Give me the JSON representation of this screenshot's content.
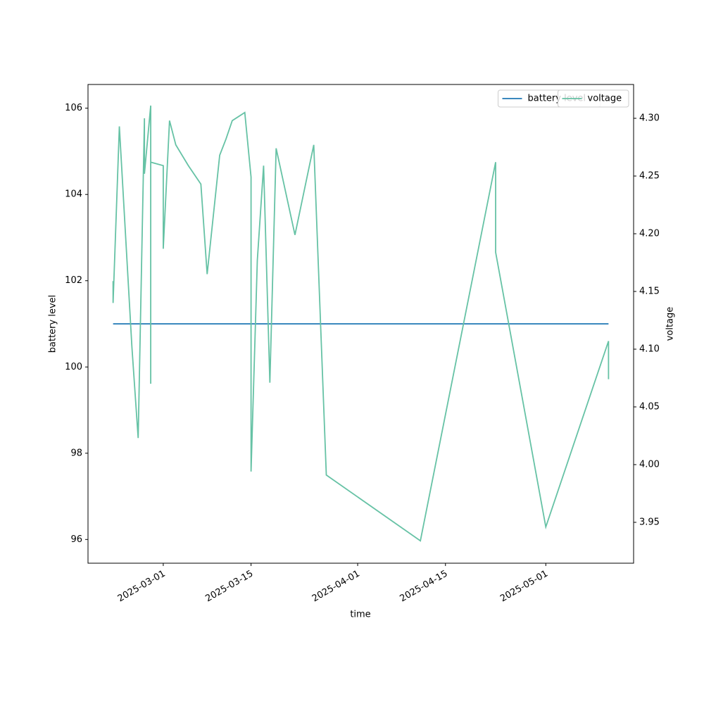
{
  "chart_data": {
    "type": "line",
    "x_label": "time",
    "y_label": "battery level",
    "y2_label": "voltage",
    "xlim": [
      "2025-02-17",
      "2025-05-15"
    ],
    "xticks": [
      "2025-03-01",
      "2025-03-15",
      "2025-04-01",
      "2025-04-15",
      "2025-05-01"
    ],
    "ylim": [
      95.45,
      106.55
    ],
    "yticks": [
      96,
      98,
      100,
      102,
      104,
      106
    ],
    "y2lim": [
      3.9146,
      4.3293
    ],
    "y2ticks": [
      3.95,
      {
        "value": 4.0,
        "label": "4.00"
      },
      4.05,
      {
        "value": 4.1,
        "label": "4.10"
      },
      4.15,
      {
        "value": 4.2,
        "label": "4.20"
      },
      4.25,
      {
        "value": 4.3,
        "label": "4.30"
      }
    ],
    "grid": false,
    "series": [
      {
        "name": "battery level",
        "color": "#1f77b4",
        "legend": "upper right",
        "x": [
          "2025-02-21",
          "2025-05-11"
        ],
        "values": [
          101,
          101
        ]
      },
      {
        "name": "voltage",
        "color": "#66c2a5",
        "axis": "y2",
        "legend": "upper right",
        "x": [
          "2025-02-21",
          "2025-02-21",
          "2025-02-22",
          "2025-02-24",
          "2025-02-25",
          "2025-02-26",
          "2025-02-26",
          "2025-02-27",
          "2025-02-27",
          "2025-02-27",
          "2025-03-01",
          "2025-03-01",
          "2025-03-02",
          "2025-03-03",
          "2025-03-05",
          "2025-03-07",
          "2025-03-08",
          "2025-03-10",
          "2025-03-11",
          "2025-03-12",
          "2025-03-14",
          "2025-03-15",
          "2025-03-15",
          "2025-03-15",
          "2025-03-16",
          "2025-03-17",
          "2025-03-18",
          "2025-03-19",
          "2025-03-22",
          "2025-03-25",
          "2025-03-27",
          "2025-04-11",
          "2025-04-23",
          "2025-04-23",
          "2025-05-01",
          "2025-05-11",
          "2025-05-11"
        ],
        "values": [
          4.159,
          4.14,
          4.293,
          4.102,
          4.023,
          4.3,
          4.252,
          4.311,
          4.07,
          4.262,
          4.259,
          4.187,
          4.298,
          4.277,
          4.259,
          4.243,
          4.165,
          4.268,
          4.282,
          4.298,
          4.305,
          4.249,
          4.032,
          3.994,
          4.177,
          4.259,
          4.071,
          4.274,
          4.199,
          4.277,
          3.991,
          3.934,
          4.262,
          4.184,
          3.946,
          4.107,
          4.074
        ]
      }
    ]
  }
}
